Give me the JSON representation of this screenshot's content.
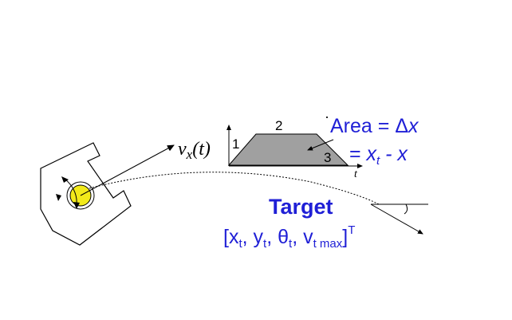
{
  "colors": {
    "ink": "#000000",
    "accent_blue": "#1f1fd6",
    "trapezoid_fill": "#a0a0a0",
    "wheel_fill": "#f2ea1a"
  },
  "velocity_label": {
    "var": "v",
    "sub": "x",
    "arg": "(t)"
  },
  "profile": {
    "segment_1": "1",
    "segment_2": "2",
    "segment_3": "3",
    "time_axis": "t"
  },
  "area_note": {
    "dot": "·",
    "line1_prefix": "Area = ",
    "line1_delta": "Δ",
    "line1_var": "x",
    "line2_eq": "= ",
    "line2_xt": "x",
    "line2_t": "t",
    "line2_rest": " - x"
  },
  "target": {
    "title": "Target",
    "open": "[",
    "x": "x",
    "x_sub": "t",
    "sep1": ", ",
    "y": "y",
    "y_sub": "t",
    "sep2": ", ",
    "theta": "θ",
    "theta_sub": "t",
    "sep3": ", ",
    "v": "v",
    "v_sub": "t max",
    "close": "]",
    "sup": "T"
  },
  "icons": [
    "robot-body-icon",
    "wheel-icon",
    "rotation-arrow-icon",
    "heading-angle-icon"
  ]
}
